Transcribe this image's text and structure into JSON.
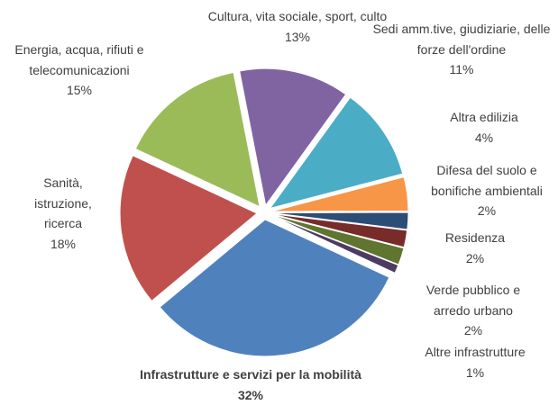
{
  "chart_data": {
    "type": "pie",
    "categories": [
      "Infrastrutture e servizi per la mobilità",
      "Sanità, istruzione, ricerca",
      "Energia, acqua, rifiuti e telecomunicazioni",
      "Cultura, vita sociale, sport, culto",
      "Sedi amm.tive, giudiziarie, delle forze dell'ordine",
      "Altra edilizia",
      "Difesa del suolo e bonifiche ambientali",
      "Residenza",
      "Verde pubblico e arredo urbano",
      "Altre infrastrutture"
    ],
    "values": [
      32,
      18,
      15,
      13,
      11,
      4,
      2,
      2,
      2,
      1
    ],
    "value_labels": [
      "32%",
      "18%",
      "15%",
      "13%",
      "11%",
      "4%",
      "2%",
      "2%",
      "2%",
      "1%"
    ],
    "colors": [
      "#4f81bd",
      "#c0504d",
      "#9bbb59",
      "#8064a2",
      "#4bacc6",
      "#f79646",
      "#2c4d75",
      "#772c2a",
      "#5f7530",
      "#4d3b62"
    ]
  }
}
